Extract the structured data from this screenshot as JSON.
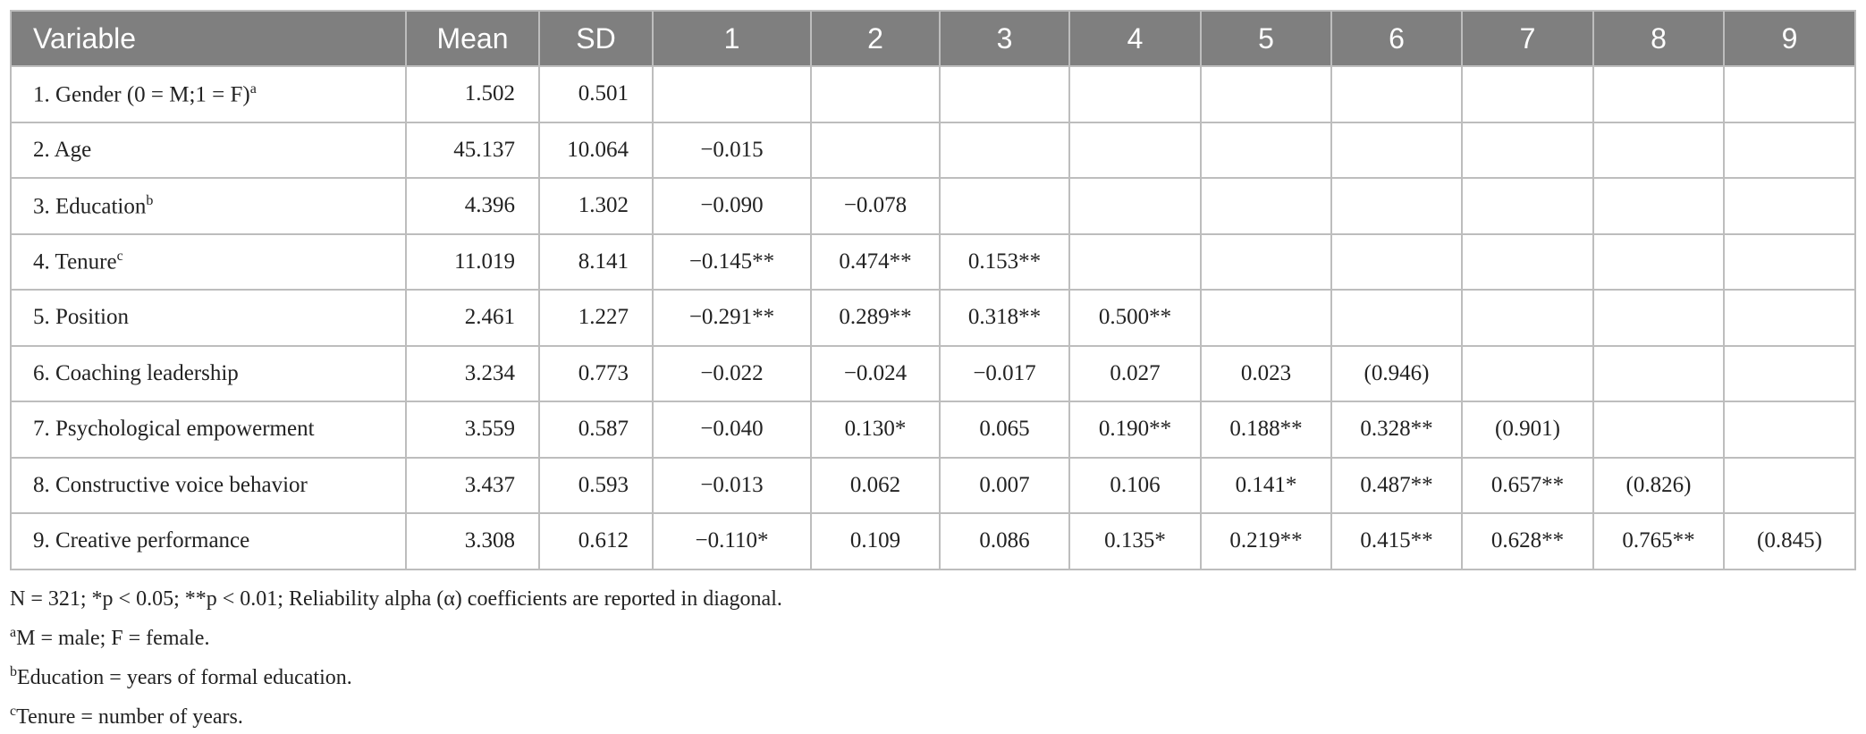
{
  "table": {
    "header": [
      "Variable",
      "Mean",
      "SD",
      "1",
      "2",
      "3",
      "4",
      "5",
      "6",
      "7",
      "8",
      "9"
    ],
    "rows": [
      {
        "label": "1. Gender (0 = M;1 = F)",
        "sup": "a",
        "cells": [
          "1.502",
          "0.501",
          null,
          null,
          null,
          null,
          null,
          null,
          null,
          null,
          null
        ]
      },
      {
        "label": "2. Age",
        "sup": null,
        "cells": [
          "45.137",
          "10.064",
          "−0.015",
          null,
          null,
          null,
          null,
          null,
          null,
          null,
          null
        ]
      },
      {
        "label": "3. Education",
        "sup": "b",
        "cells": [
          "4.396",
          "1.302",
          "−0.090",
          "−0.078",
          null,
          null,
          null,
          null,
          null,
          null,
          null
        ]
      },
      {
        "label": "4. Tenure",
        "sup": "c",
        "cells": [
          "11.019",
          "8.141",
          "−0.145**",
          "0.474**",
          "0.153**",
          null,
          null,
          null,
          null,
          null,
          null
        ]
      },
      {
        "label": "5. Position",
        "sup": null,
        "cells": [
          "2.461",
          "1.227",
          "−0.291**",
          "0.289**",
          "0.318**",
          "0.500**",
          null,
          null,
          null,
          null,
          null
        ]
      },
      {
        "label": "6. Coaching leadership",
        "sup": null,
        "cells": [
          "3.234",
          "0.773",
          "−0.022",
          "−0.024",
          "−0.017",
          "0.027",
          "0.023",
          "(0.946)",
          null,
          null,
          null
        ]
      },
      {
        "label": "7. Psychological empowerment",
        "sup": null,
        "cells": [
          "3.559",
          "0.587",
          "−0.040",
          "0.130*",
          "0.065",
          "0.190**",
          "0.188**",
          "0.328**",
          "(0.901)",
          null,
          null
        ]
      },
      {
        "label": "8. Constructive voice behavior",
        "sup": null,
        "cells": [
          "3.437",
          "0.593",
          "−0.013",
          "0.062",
          "0.007",
          "0.106",
          "0.141*",
          "0.487**",
          "0.657**",
          "(0.826)",
          null
        ]
      },
      {
        "label": "9. Creative performance",
        "sup": null,
        "cells": [
          "3.308",
          "0.612",
          "−0.110*",
          "0.109",
          "0.086",
          "0.135*",
          "0.219**",
          "0.415**",
          "0.628**",
          "0.765**",
          "(0.845)"
        ]
      }
    ]
  },
  "footnotes": [
    {
      "sup": null,
      "text": "N = 321; *p < 0.05; **p < 0.01; Reliability alpha (α) coefficients are reported in diagonal."
    },
    {
      "sup": "a",
      "text": "M = male; F = female."
    },
    {
      "sup": "b",
      "text": "Education = years of formal education."
    },
    {
      "sup": "c",
      "text": "Tenure = number of years."
    }
  ]
}
